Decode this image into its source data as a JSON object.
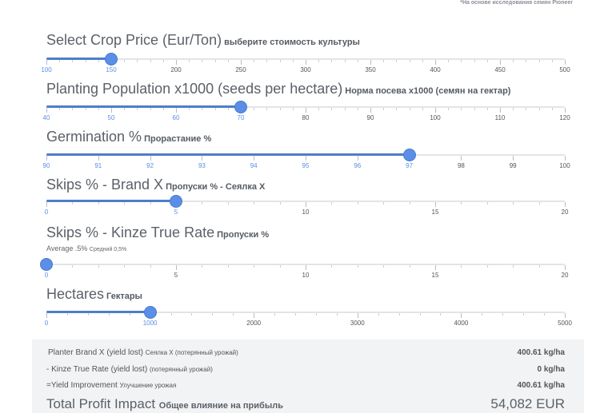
{
  "footnote": "*На основе исследования семян Pioneer",
  "sliders": [
    {
      "id": "price",
      "title": "Select Crop Price (Eur/Ton)",
      "ru": "выберите стоимость культуры",
      "sub": "",
      "sub_ru": "",
      "min": 100,
      "max": 500,
      "value": 150,
      "labels": [
        100,
        150,
        200,
        250,
        300,
        350,
        400,
        450,
        500
      ],
      "minor_per_major": 5
    },
    {
      "id": "population",
      "title": "Planting Population x1000 (seeds per hectare)",
      "ru": "Норма посева x1000 (семян на гектар)",
      "sub": "",
      "sub_ru": "",
      "min": 40,
      "max": 120,
      "value": 70,
      "labels": [
        40,
        50,
        60,
        70,
        80,
        90,
        100,
        110,
        120
      ],
      "minor_per_major": 5
    },
    {
      "id": "germination",
      "title": "Germination %",
      "ru": "Прорастание %",
      "sub": "",
      "sub_ru": "",
      "min": 90,
      "max": 100,
      "value": 97,
      "labels": [
        90,
        91,
        92,
        93,
        94,
        95,
        96,
        97,
        98,
        99,
        100
      ],
      "minor_per_major": 0
    },
    {
      "id": "skips_x",
      "title": "Skips % - Brand X",
      "ru": "Пропуски % - Сеялка X",
      "sub": "",
      "sub_ru": "",
      "min": 0,
      "max": 20,
      "value": 5,
      "labels": [
        0,
        5,
        10,
        15,
        20
      ],
      "minor_per_major": 5
    },
    {
      "id": "skips_kinze",
      "title": "Skips % - Kinze True Rate",
      "ru": "Пропуски %",
      "sub": "Average .5%",
      "sub_ru": "Средний 0,5%",
      "min": 0,
      "max": 20,
      "value": 0,
      "labels": [
        0,
        5,
        10,
        15,
        20
      ],
      "minor_per_major": 5
    },
    {
      "id": "hectares",
      "title": "Hectares",
      "ru": "Гектары",
      "sub": "",
      "sub_ru": "",
      "min": 0,
      "max": 5000,
      "value": 1000,
      "labels": [
        0,
        1000,
        2000,
        3000,
        4000,
        5000
      ],
      "minor_per_major": 5
    }
  ],
  "results": {
    "brand_x": {
      "label": "Planter Brand X (yield lost)",
      "ru": "Сеялка X (потерянный урожай)",
      "value": "400.61 kg/ha"
    },
    "kinze": {
      "label": "- Kinze True Rate (yield lost)",
      "ru": "(потерянный урожай)",
      "value": "0 kg/ha"
    },
    "improvement": {
      "label": "=Yield Improvement",
      "ru": "Улучшение урожая",
      "value": "400.61 kg/ha"
    },
    "total": {
      "label": "Total Profit Impact",
      "ru": "Общее влияние на прибыль",
      "value": "54,082 EUR"
    }
  }
}
